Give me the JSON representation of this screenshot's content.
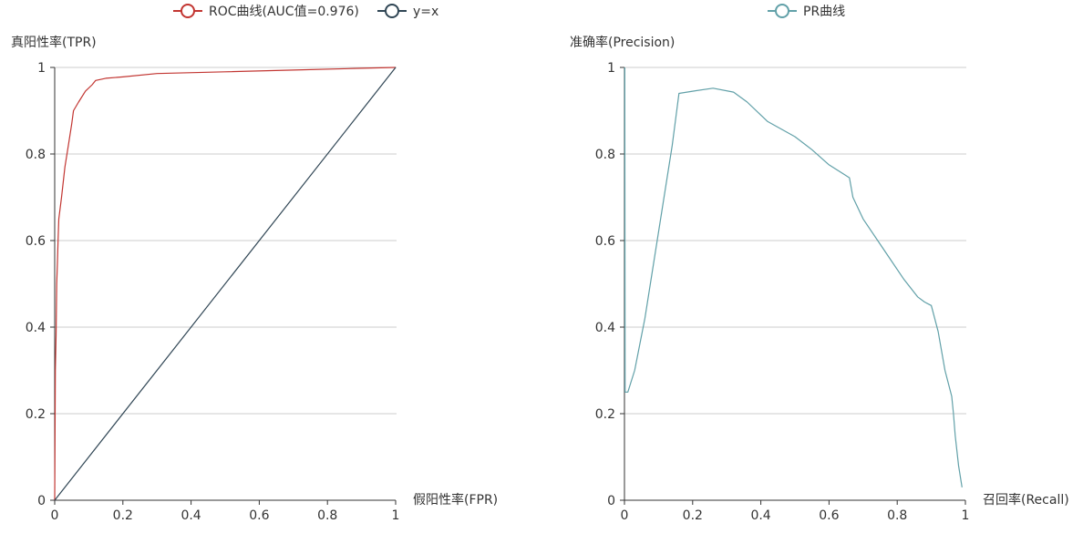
{
  "colors": {
    "roc": "#c23531",
    "diag": "#2f4554",
    "pr": "#61a0a8"
  },
  "chart_data": [
    {
      "type": "line",
      "legend_placement": "top-center",
      "grid": "horizontal",
      "xlabel": "假阳性率(FPR)",
      "ylabel": "真阳性率(TPR)",
      "xlim": [
        0,
        1
      ],
      "ylim": [
        0,
        1
      ],
      "xticks": [
        "0",
        "0.2",
        "0.4",
        "0.6",
        "0.8",
        "1"
      ],
      "yticks": [
        "0",
        "0.2",
        "0.4",
        "0.6",
        "0.8",
        "1"
      ],
      "series": [
        {
          "name": "ROC曲线(AUC值=0.976)",
          "color": "#c23531",
          "points": [
            [
              0,
              0
            ],
            [
              0.002,
              0.3
            ],
            [
              0.004,
              0.38
            ],
            [
              0.006,
              0.5
            ],
            [
              0.008,
              0.55
            ],
            [
              0.01,
              0.6
            ],
            [
              0.012,
              0.65
            ],
            [
              0.02,
              0.7
            ],
            [
              0.03,
              0.77
            ],
            [
              0.04,
              0.82
            ],
            [
              0.05,
              0.87
            ],
            [
              0.055,
              0.9
            ],
            [
              0.07,
              0.92
            ],
            [
              0.09,
              0.945
            ],
            [
              0.11,
              0.96
            ],
            [
              0.12,
              0.97
            ],
            [
              0.15,
              0.975
            ],
            [
              0.2,
              0.978
            ],
            [
              0.3,
              0.986
            ],
            [
              0.5,
              0.99
            ],
            [
              0.7,
              0.994
            ],
            [
              0.9,
              0.998
            ],
            [
              1,
              1
            ]
          ]
        },
        {
          "name": "y=x",
          "color": "#2f4554",
          "points": [
            [
              0,
              0
            ],
            [
              1,
              1
            ]
          ]
        }
      ]
    },
    {
      "type": "line",
      "legend_placement": "top-center",
      "grid": "horizontal",
      "xlabel": "召回率(Recall)",
      "ylabel": "准确率(Precision)",
      "xlim": [
        0,
        1
      ],
      "ylim": [
        0,
        1
      ],
      "xticks": [
        "0",
        "0.2",
        "0.4",
        "0.6",
        "0.8",
        "1"
      ],
      "yticks": [
        "0",
        "0.2",
        "0.4",
        "0.6",
        "0.8",
        "1"
      ],
      "series": [
        {
          "name": "PR曲线",
          "color": "#61a0a8",
          "points": [
            [
              0.001,
              1.0
            ],
            [
              0.001,
              0.94
            ],
            [
              0.002,
              0.25
            ],
            [
              0.01,
              0.25
            ],
            [
              0.03,
              0.3
            ],
            [
              0.06,
              0.42
            ],
            [
              0.1,
              0.62
            ],
            [
              0.14,
              0.82
            ],
            [
              0.16,
              0.94
            ],
            [
              0.2,
              0.945
            ],
            [
              0.26,
              0.952
            ],
            [
              0.32,
              0.943
            ],
            [
              0.36,
              0.92
            ],
            [
              0.4,
              0.89
            ],
            [
              0.42,
              0.875
            ],
            [
              0.5,
              0.84
            ],
            [
              0.55,
              0.81
            ],
            [
              0.6,
              0.775
            ],
            [
              0.64,
              0.755
            ],
            [
              0.66,
              0.745
            ],
            [
              0.67,
              0.7
            ],
            [
              0.7,
              0.65
            ],
            [
              0.76,
              0.58
            ],
            [
              0.82,
              0.51
            ],
            [
              0.86,
              0.47
            ],
            [
              0.88,
              0.458
            ],
            [
              0.9,
              0.45
            ],
            [
              0.92,
              0.39
            ],
            [
              0.94,
              0.3
            ],
            [
              0.96,
              0.24
            ],
            [
              0.965,
              0.2
            ],
            [
              0.97,
              0.15
            ],
            [
              0.98,
              0.08
            ],
            [
              0.99,
              0.03
            ]
          ]
        }
      ]
    }
  ]
}
